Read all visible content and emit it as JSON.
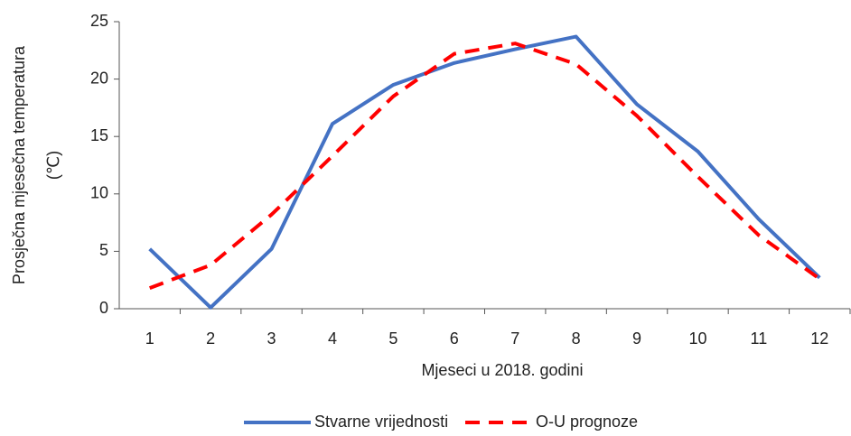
{
  "chart_data": {
    "type": "line",
    "xlabel": "Mjeseci u 2018. godini",
    "ylabel": [
      "Prosječna mjesečna temperatura",
      "(℃)"
    ],
    "categories": [
      "1",
      "2",
      "3",
      "4",
      "5",
      "6",
      "7",
      "8",
      "9",
      "10",
      "11",
      "12"
    ],
    "series": [
      {
        "name": "Stvarne vrijednosti",
        "color": "#4472c4",
        "dash": false,
        "values": [
          5.2,
          0.1,
          5.2,
          16.1,
          19.5,
          21.4,
          22.6,
          23.7,
          17.8,
          13.7,
          7.8,
          2.7
        ]
      },
      {
        "name": "O-U prognoze",
        "color": "#ff0000",
        "dash": true,
        "values": [
          1.8,
          3.8,
          8.2,
          13.3,
          18.5,
          22.2,
          23.1,
          21.3,
          16.8,
          11.5,
          6.4,
          2.6
        ]
      }
    ],
    "ylim": [
      0,
      25
    ],
    "yticks": [
      0,
      5,
      10,
      15,
      20,
      25
    ],
    "grid": false,
    "legend": "bottom"
  }
}
